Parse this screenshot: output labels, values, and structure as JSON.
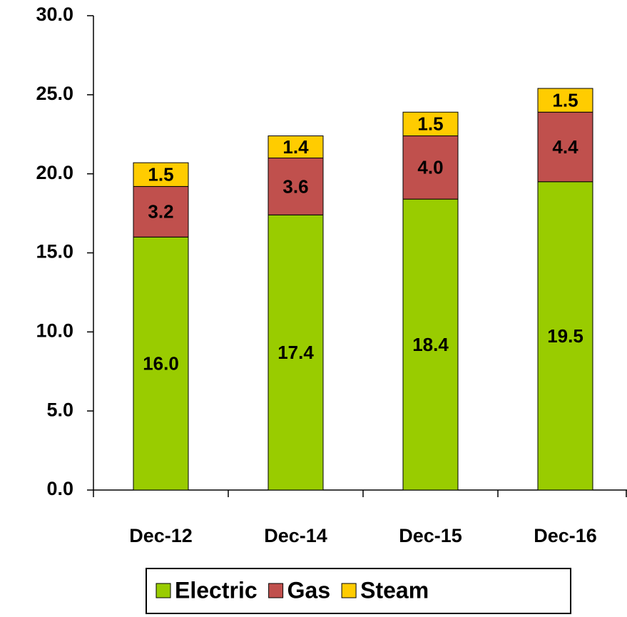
{
  "chart_data": {
    "type": "stacked-bar",
    "categories": [
      "Dec-12",
      "Dec-14",
      "Dec-15",
      "Dec-16"
    ],
    "series": [
      {
        "name": "Electric",
        "color": "#99cc00",
        "values": [
          16.0,
          17.4,
          18.4,
          19.5
        ],
        "value_labels": [
          "16.0",
          "17.4",
          "18.4",
          "19.5"
        ]
      },
      {
        "name": "Gas",
        "color": "#c0504d",
        "values": [
          3.2,
          3.6,
          4.0,
          4.4
        ],
        "value_labels": [
          "3.2",
          "3.6",
          "4.0",
          "4.4"
        ]
      },
      {
        "name": "Steam",
        "color": "#ffcc00",
        "values": [
          1.5,
          1.4,
          1.5,
          1.5
        ],
        "value_labels": [
          "1.5",
          "1.4",
          "1.5",
          "1.5"
        ]
      }
    ],
    "ylim": [
      0,
      30
    ],
    "yticks": [
      {
        "value": 0,
        "label": "0.0"
      },
      {
        "value": 5,
        "label": "5.0"
      },
      {
        "value": 10,
        "label": "10.0"
      },
      {
        "value": 15,
        "label": "15.0"
      },
      {
        "value": 20,
        "label": "20.0"
      },
      {
        "value": 25,
        "label": "25.0"
      },
      {
        "value": 30,
        "label": "30.0"
      }
    ],
    "legend": "bottom"
  }
}
